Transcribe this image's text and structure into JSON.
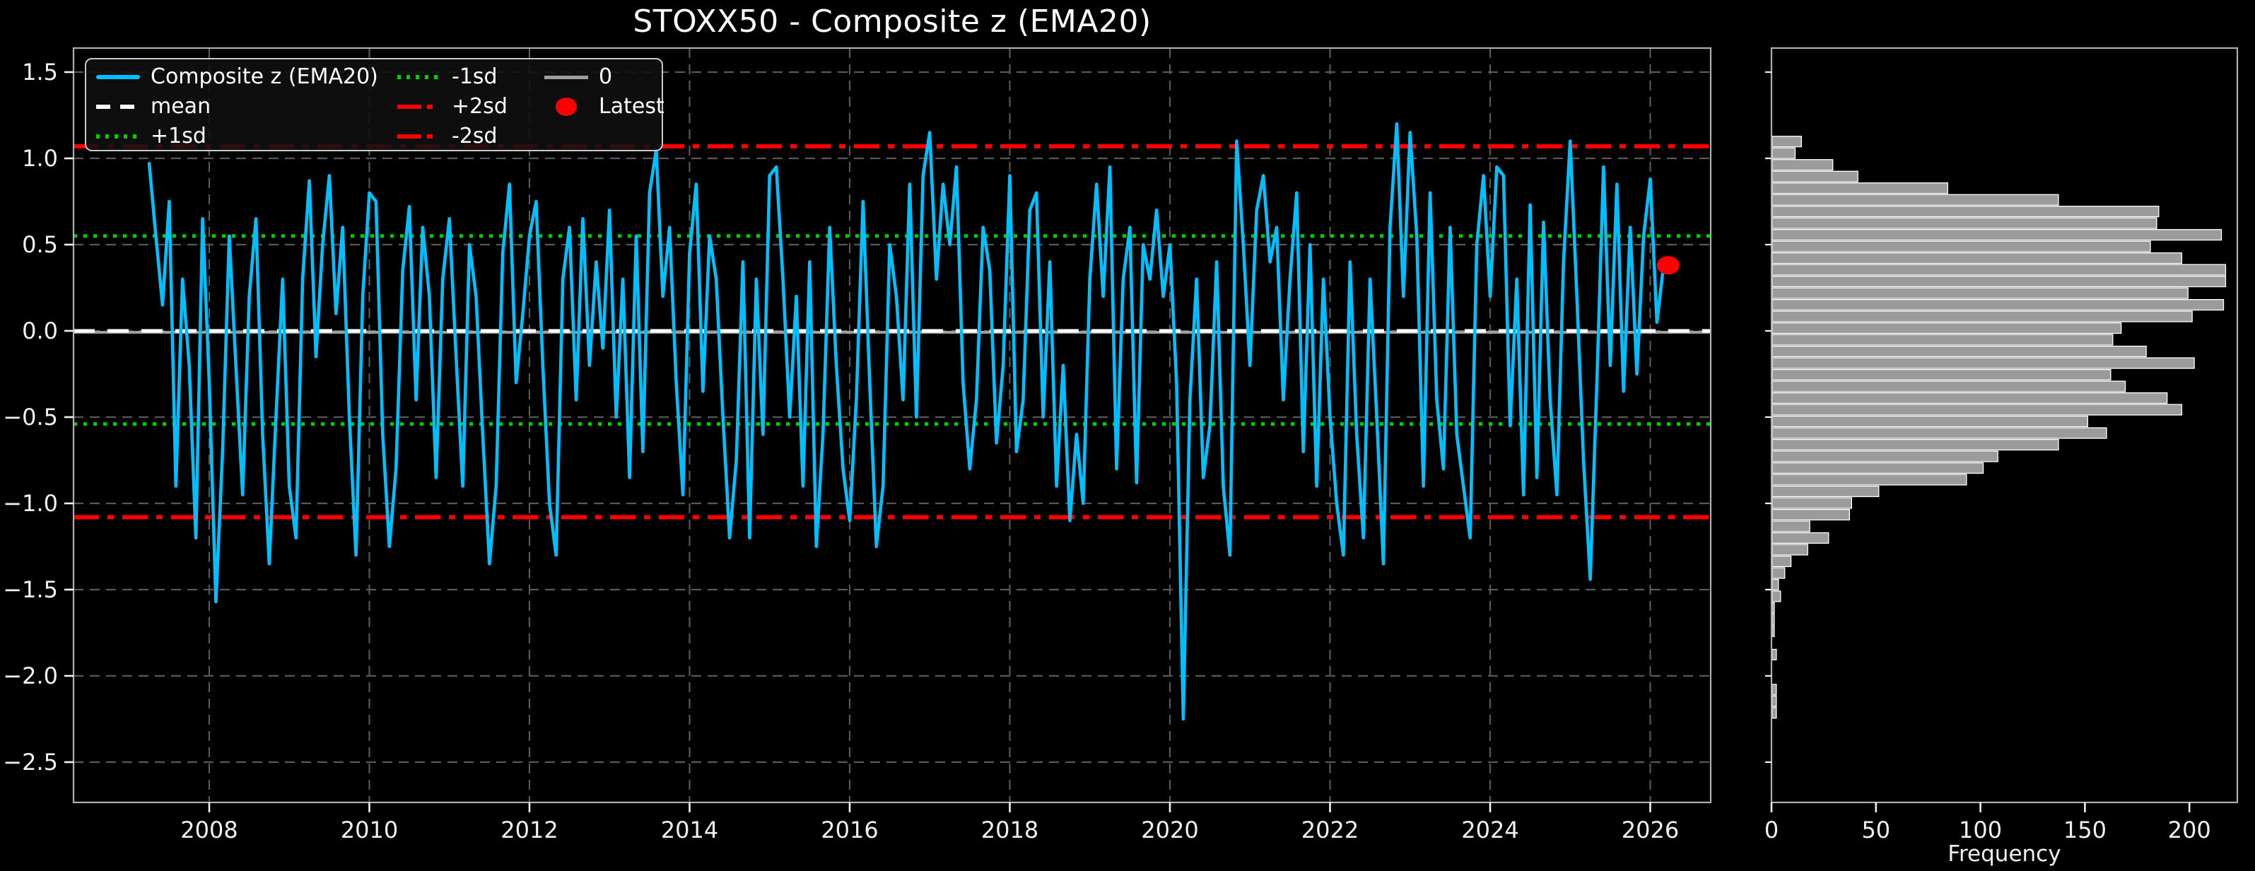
{
  "title": "STOXX50 - Composite z (EMA20)",
  "colors": {
    "background": "#000000",
    "series_line": "#00BFFF",
    "mean_line": "#ffffff",
    "sd1_line": "#00cc00",
    "sd2_line": "#ff0000",
    "zero_line": "#9e9e9e",
    "latest_marker": "#ff0000",
    "hist_bar_fill": "#9b9b9b",
    "hist_bar_edge": "#ffffff",
    "grid": "#585858",
    "spine": "#aeaeae",
    "tick_text": "#f0f0f0"
  },
  "legend": {
    "items": [
      {
        "label": "Composite z (EMA20)",
        "swatch": "cyan-line"
      },
      {
        "label": "mean",
        "swatch": "white-dashed"
      },
      {
        "label": "+1sd",
        "swatch": "green-dotted"
      },
      {
        "label": "-1sd",
        "swatch": "green-dotted"
      },
      {
        "label": "+2sd",
        "swatch": "red-dashdot"
      },
      {
        "label": "-2sd",
        "swatch": "red-dashdot"
      },
      {
        "label": "0",
        "swatch": "gray-line"
      },
      {
        "label": "Latest",
        "swatch": "red-dot"
      }
    ]
  },
  "chart_data": [
    {
      "type": "line",
      "title": "STOXX50 - Composite z (EMA20)",
      "series_name": "Composite z (EMA20)",
      "xlim": [
        2006.3,
        2026.76
      ],
      "ylim": [
        -2.73,
        1.64
      ],
      "x_ticks": [
        2008,
        2010,
        2012,
        2014,
        2016,
        2018,
        2020,
        2022,
        2024,
        2026
      ],
      "x_tick_labels": [
        "2008",
        "2010",
        "2012",
        "2014",
        "2016",
        "2018",
        "2020",
        "2022",
        "2024",
        "2026"
      ],
      "y_ticks": [
        1.5,
        1.0,
        0.5,
        0.0,
        -0.5,
        -1.0,
        -1.5,
        -2.0,
        -2.5
      ],
      "y_tick_labels": [
        "1.5",
        "1.0",
        "0.5",
        "0.0",
        "−0.5",
        "−1.0",
        "−1.5",
        "−2.0",
        "−2.5"
      ],
      "grid": true,
      "legend_position": "upper left",
      "reference_lines": {
        "mean": 0.0,
        "plus1sd": 0.55,
        "minus1sd": -0.54,
        "plus2sd": 1.07,
        "minus2sd": -1.08,
        "zero": 0.0
      },
      "latest": {
        "t": 2026.17,
        "value": 0.38
      },
      "t_start": 2007.25,
      "t_step": 0.0833333,
      "values": [
        0.97,
        0.55,
        0.15,
        0.75,
        -0.9,
        0.3,
        -0.2,
        -1.2,
        0.65,
        -0.3,
        -1.57,
        -0.7,
        0.55,
        -0.2,
        -0.95,
        0.2,
        0.65,
        -0.6,
        -1.35,
        -0.5,
        0.3,
        -0.9,
        -1.2,
        0.3,
        0.87,
        -0.15,
        0.5,
        0.9,
        0.1,
        0.6,
        -0.5,
        -1.3,
        0.2,
        0.8,
        0.75,
        -0.6,
        -1.25,
        -0.8,
        0.35,
        0.72,
        -0.4,
        0.6,
        0.2,
        -0.85,
        0.3,
        0.65,
        -0.15,
        -0.9,
        0.5,
        0.2,
        -0.6,
        -1.35,
        -0.9,
        0.45,
        0.85,
        -0.3,
        0.1,
        0.55,
        0.75,
        -0.2,
        -1.0,
        -1.3,
        0.3,
        0.6,
        -0.4,
        0.65,
        -0.2,
        0.4,
        -0.1,
        0.7,
        -0.5,
        0.3,
        -0.85,
        0.55,
        -0.7,
        0.8,
        1.05,
        0.2,
        0.6,
        -0.3,
        -0.95,
        0.45,
        0.85,
        -0.35,
        0.55,
        0.3,
        -0.5,
        -1.2,
        -0.75,
        0.4,
        -1.2,
        0.3,
        -0.6,
        0.9,
        0.95,
        0.3,
        -0.5,
        0.2,
        -0.9,
        0.4,
        -1.25,
        -0.6,
        0.6,
        -0.2,
        -0.8,
        -1.1,
        -0.4,
        0.75,
        -0.3,
        -1.25,
        -0.9,
        0.5,
        0.2,
        -0.4,
        0.85,
        -0.5,
        0.9,
        1.15,
        0.3,
        0.85,
        0.5,
        0.95,
        -0.3,
        -0.8,
        -0.4,
        0.6,
        0.35,
        -0.65,
        -0.2,
        0.9,
        -0.7,
        -0.4,
        0.7,
        0.8,
        -0.5,
        0.4,
        -0.9,
        -0.2,
        -1.1,
        -0.6,
        -1.0,
        0.3,
        0.85,
        0.2,
        0.95,
        -0.8,
        0.3,
        0.6,
        -0.88,
        0.5,
        0.3,
        0.7,
        0.2,
        0.5,
        -0.3,
        -2.25,
        -0.4,
        0.3,
        -0.85,
        -0.55,
        0.4,
        -0.9,
        -1.3,
        1.1,
        0.5,
        -0.2,
        0.7,
        0.9,
        0.4,
        0.6,
        -0.4,
        0.3,
        0.8,
        -0.7,
        0.5,
        -0.9,
        0.3,
        -0.5,
        -1.0,
        -1.3,
        0.4,
        -0.6,
        -1.2,
        0.3,
        -0.5,
        -1.35,
        0.6,
        1.2,
        0.2,
        1.15,
        0.55,
        -0.9,
        0.8,
        -0.4,
        -0.8,
        0.6,
        -0.6,
        -0.9,
        -1.2,
        0.5,
        0.9,
        0.2,
        0.95,
        0.9,
        -0.55,
        0.3,
        -0.95,
        0.73,
        -0.85,
        0.63,
        -0.4,
        -0.95,
        0.4,
        1.1,
        0.2,
        -0.75,
        -1.44,
        -0.3,
        0.95,
        -0.2,
        0.85,
        -0.35,
        0.6,
        -0.25,
        0.55,
        0.88,
        0.05,
        0.38
      ]
    },
    {
      "type": "bar",
      "orientation": "horizontal",
      "xlabel": "Frequency",
      "x_ticks": [
        0,
        50,
        100,
        150,
        200
      ],
      "x_tick_labels": [
        "0",
        "50",
        "100",
        "150",
        "200"
      ],
      "xlim": [
        0,
        223
      ],
      "bin_value_max": 1.131,
      "bin_width": 0.0676,
      "frequencies": [
        14,
        11,
        29,
        41,
        84,
        137,
        185,
        184,
        215,
        181,
        196,
        217,
        217,
        199,
        216,
        201,
        167,
        163,
        179,
        202,
        162,
        169,
        189,
        196,
        151,
        160,
        137,
        108,
        101,
        93,
        51,
        38,
        37,
        18,
        27,
        17,
        9,
        6,
        3,
        4,
        1,
        1,
        1,
        0,
        2,
        0,
        0,
        2,
        2,
        2
      ]
    }
  ]
}
